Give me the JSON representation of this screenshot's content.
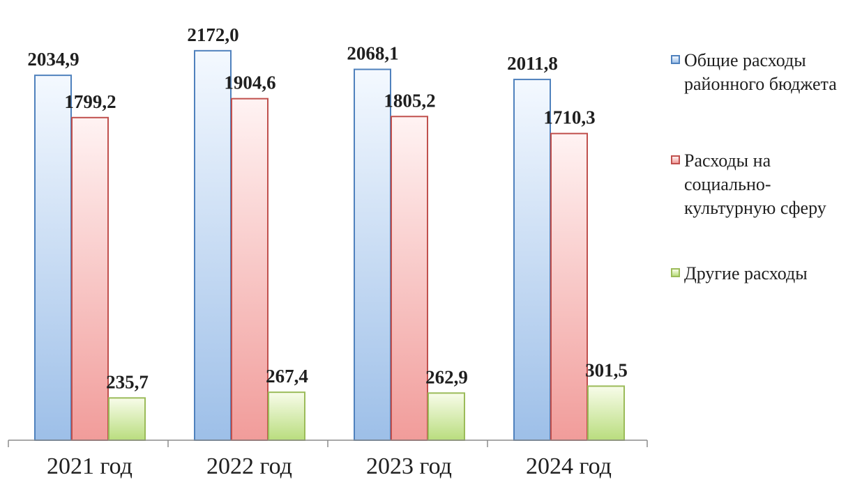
{
  "chart_data": {
    "type": "bar",
    "categories": [
      "2021 год",
      "2022 год",
      "2023 год",
      "2024 год"
    ],
    "series": [
      {
        "name": "Общие расходы районного бюджета",
        "values": [
          2034.9,
          2172.0,
          2068.1,
          2011.8
        ],
        "labels": [
          "2034,9",
          "2172,0",
          "2068,1",
          "2011,8"
        ],
        "color": "#4f81bd"
      },
      {
        "name": "Расходы на социально-культурную сферу",
        "values": [
          1799.2,
          1904.6,
          1805.2,
          1710.3
        ],
        "labels": [
          "1799,2",
          "1904,6",
          "1805,2",
          "1710,3"
        ],
        "color": "#c0504d"
      },
      {
        "name": "Другие расходы",
        "values": [
          235.7,
          267.4,
          262.9,
          301.5
        ],
        "labels": [
          "235,7",
          "267,4",
          "262,9",
          "301,5"
        ],
        "color": "#9bbb59"
      }
    ],
    "title": "",
    "xlabel": "",
    "ylabel": "",
    "ylim": [
      0,
      2350
    ],
    "grid": false,
    "legend_position": "right"
  }
}
